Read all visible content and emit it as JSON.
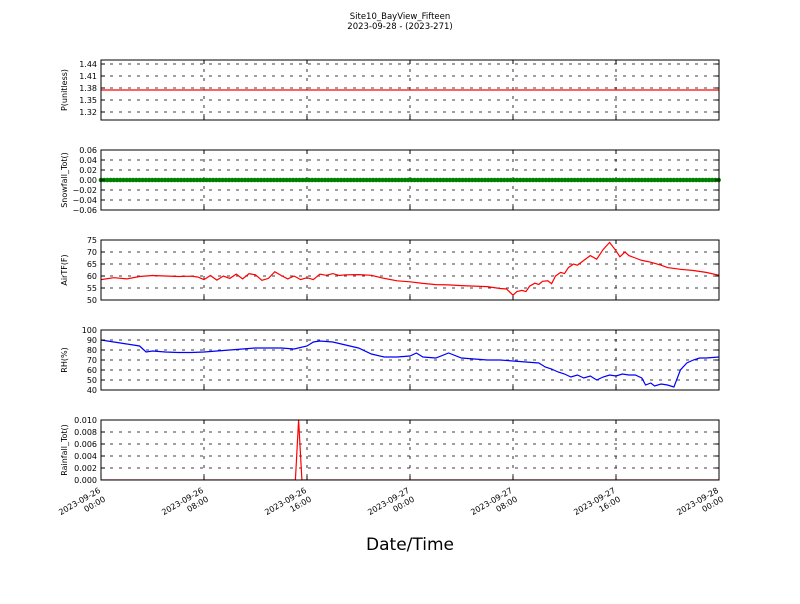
{
  "header": {
    "title": "Site10_BayView_Fifteen",
    "subtitle": "2023-09-28 - (2023-271)"
  },
  "xlabel": "Date/Time",
  "x_ticks": [
    {
      "t": 0,
      "line1": "2023-09-26",
      "line2": "00:00"
    },
    {
      "t": 8,
      "line1": "2023-09-26",
      "line2": "08:00"
    },
    {
      "t": 16,
      "line1": "2023-09-26",
      "line2": "16:00"
    },
    {
      "t": 24,
      "line1": "2023-09-27",
      "line2": "00:00"
    },
    {
      "t": 32,
      "line1": "2023-09-27",
      "line2": "08:00"
    },
    {
      "t": 40,
      "line1": "2023-09-27",
      "line2": "16:00"
    },
    {
      "t": 48,
      "line1": "2023-09-28",
      "line2": "00:00"
    }
  ],
  "chart_data": [
    {
      "type": "line",
      "ylabel": "P(unitless)",
      "color": "#ff0000",
      "ylim": [
        1.3,
        1.45
      ],
      "yticks": [
        1.32,
        1.35,
        1.38,
        1.41,
        1.44
      ],
      "ytick_labels": [
        "1.32",
        "1.35",
        "1.38",
        "1.41",
        "1.44"
      ],
      "grid": true,
      "points": [
        [
          0,
          1.375
        ],
        [
          48,
          1.375
        ]
      ]
    },
    {
      "type": "line",
      "ylabel": "Snowfall_Tot()",
      "color": "#008000",
      "ylim": [
        -0.06,
        0.06
      ],
      "yticks": [
        -0.06,
        -0.04,
        -0.02,
        0.0,
        0.02,
        0.04,
        0.06
      ],
      "ytick_labels": [
        "−0.06",
        "−0.04",
        "−0.02",
        "0.00",
        "0.02",
        "0.04",
        "0.06"
      ],
      "grid": true,
      "markers": true,
      "points": [
        [
          0,
          0
        ],
        [
          48,
          0
        ]
      ]
    },
    {
      "type": "line",
      "ylabel": "AirTF(F)",
      "color": "#ff0000",
      "ylim": [
        50,
        75
      ],
      "yticks": [
        50,
        55,
        60,
        65,
        70,
        75
      ],
      "ytick_labels": [
        "50",
        "55",
        "60",
        "65",
        "70",
        "75"
      ],
      "grid": true,
      "points": [
        [
          0,
          58.5
        ],
        [
          1,
          59.3
        ],
        [
          2,
          58.8
        ],
        [
          3,
          59.8
        ],
        [
          4,
          60.2
        ],
        [
          5,
          60.0
        ],
        [
          6,
          59.8
        ],
        [
          7,
          59.9
        ],
        [
          7.5,
          59.6
        ],
        [
          8,
          58.5
        ],
        [
          8.5,
          60.2
        ],
        [
          9,
          58.3
        ],
        [
          9.5,
          60.0
        ],
        [
          10,
          59.0
        ],
        [
          10.5,
          60.8
        ],
        [
          11,
          58.8
        ],
        [
          11.5,
          61.0
        ],
        [
          12,
          60.5
        ],
        [
          12.5,
          58.2
        ],
        [
          13,
          59.0
        ],
        [
          13.5,
          61.8
        ],
        [
          14,
          60.2
        ],
        [
          14.5,
          58.8
        ],
        [
          15,
          60.0
        ],
        [
          15.5,
          58.5
        ],
        [
          16,
          59.3
        ],
        [
          16.5,
          58.5
        ],
        [
          17,
          60.8
        ],
        [
          17.5,
          60.3
        ],
        [
          18,
          61.0
        ],
        [
          18.5,
          60.2
        ],
        [
          19,
          60.5
        ],
        [
          20,
          60.6
        ],
        [
          21,
          60.3
        ],
        [
          22,
          59.0
        ],
        [
          23,
          58.0
        ],
        [
          24,
          57.6
        ],
        [
          25,
          56.9
        ],
        [
          26,
          56.4
        ],
        [
          27,
          56.3
        ],
        [
          28,
          56.0
        ],
        [
          29,
          55.8
        ],
        [
          30,
          55.6
        ],
        [
          31,
          54.8
        ],
        [
          31.5,
          54.6
        ],
        [
          32,
          52.0
        ],
        [
          32.3,
          53.5
        ],
        [
          32.7,
          54.0
        ],
        [
          33,
          53.5
        ],
        [
          33.3,
          55.8
        ],
        [
          33.7,
          57.0
        ],
        [
          34,
          56.5
        ],
        [
          34.3,
          57.8
        ],
        [
          34.7,
          58.0
        ],
        [
          35,
          56.8
        ],
        [
          35.3,
          60.0
        ],
        [
          35.7,
          61.5
        ],
        [
          36,
          61.0
        ],
        [
          36.3,
          63.5
        ],
        [
          36.7,
          65.0
        ],
        [
          37,
          64.5
        ],
        [
          37.5,
          66.5
        ],
        [
          38,
          68.5
        ],
        [
          38.5,
          67.0
        ],
        [
          39,
          71.0
        ],
        [
          39.5,
          74.0
        ],
        [
          40,
          70.5
        ],
        [
          40.3,
          68.0
        ],
        [
          40.7,
          70.0
        ],
        [
          41,
          68.5
        ],
        [
          41.5,
          67.5
        ],
        [
          42,
          66.5
        ],
        [
          42.5,
          66.0
        ],
        [
          43,
          65.3
        ],
        [
          43.5,
          64.5
        ],
        [
          44,
          63.5
        ],
        [
          45,
          62.8
        ],
        [
          46,
          62.3
        ],
        [
          47,
          61.5
        ],
        [
          48,
          60.3
        ]
      ]
    },
    {
      "type": "line",
      "ylabel": "RH(%)",
      "color": "#0000ff",
      "ylim": [
        40,
        100
      ],
      "yticks": [
        40,
        50,
        60,
        70,
        80,
        90,
        100
      ],
      "ytick_labels": [
        "40",
        "50",
        "60",
        "70",
        "80",
        "90",
        "100"
      ],
      "grid": true,
      "points": [
        [
          0,
          90
        ],
        [
          1,
          88
        ],
        [
          2,
          86
        ],
        [
          3,
          84
        ],
        [
          3.5,
          78
        ],
        [
          4,
          79
        ],
        [
          5,
          78
        ],
        [
          6,
          77.5
        ],
        [
          7,
          77.5
        ],
        [
          8,
          78
        ],
        [
          9,
          79
        ],
        [
          10,
          80
        ],
        [
          11,
          81
        ],
        [
          12,
          82
        ],
        [
          13,
          82
        ],
        [
          14,
          82
        ],
        [
          15,
          81
        ],
        [
          16,
          84
        ],
        [
          16.5,
          88
        ],
        [
          17,
          89
        ],
        [
          18,
          88
        ],
        [
          19,
          85
        ],
        [
          20,
          82
        ],
        [
          21,
          76
        ],
        [
          22,
          73
        ],
        [
          23,
          73
        ],
        [
          24,
          74
        ],
        [
          24.5,
          77
        ],
        [
          25,
          73
        ],
        [
          26,
          72
        ],
        [
          27,
          77
        ],
        [
          28,
          72
        ],
        [
          29,
          71
        ],
        [
          30,
          70
        ],
        [
          31,
          70
        ],
        [
          32,
          69
        ],
        [
          33,
          68
        ],
        [
          34,
          67
        ],
        [
          34.5,
          63
        ],
        [
          35,
          61
        ],
        [
          35.5,
          58
        ],
        [
          36,
          56
        ],
        [
          36.5,
          53
        ],
        [
          37,
          55
        ],
        [
          37.5,
          52
        ],
        [
          38,
          54
        ],
        [
          38.5,
          50
        ],
        [
          39,
          53
        ],
        [
          39.5,
          55
        ],
        [
          40,
          54
        ],
        [
          40.5,
          56
        ],
        [
          41,
          55
        ],
        [
          41.5,
          55
        ],
        [
          42,
          52
        ],
        [
          42.3,
          45
        ],
        [
          42.7,
          47
        ],
        [
          43,
          44
        ],
        [
          43.5,
          46
        ],
        [
          44,
          45
        ],
        [
          44.5,
          43
        ],
        [
          45,
          60
        ],
        [
          45.5,
          67
        ],
        [
          46,
          70
        ],
        [
          46.5,
          72
        ],
        [
          47,
          72
        ],
        [
          48,
          73
        ]
      ]
    },
    {
      "type": "line",
      "ylabel": "Rainfall_Tot()",
      "color": "#ff0000",
      "ylim": [
        0,
        0.01
      ],
      "yticks": [
        0,
        0.002,
        0.004,
        0.006,
        0.008,
        0.01
      ],
      "ytick_labels": [
        "0.000",
        "0.002",
        "0.004",
        "0.006",
        "0.008",
        "0.010"
      ],
      "grid": true,
      "points": [
        [
          0,
          0
        ],
        [
          15.1,
          0
        ],
        [
          15.35,
          0.01
        ],
        [
          15.6,
          0
        ],
        [
          48,
          0
        ]
      ]
    }
  ]
}
